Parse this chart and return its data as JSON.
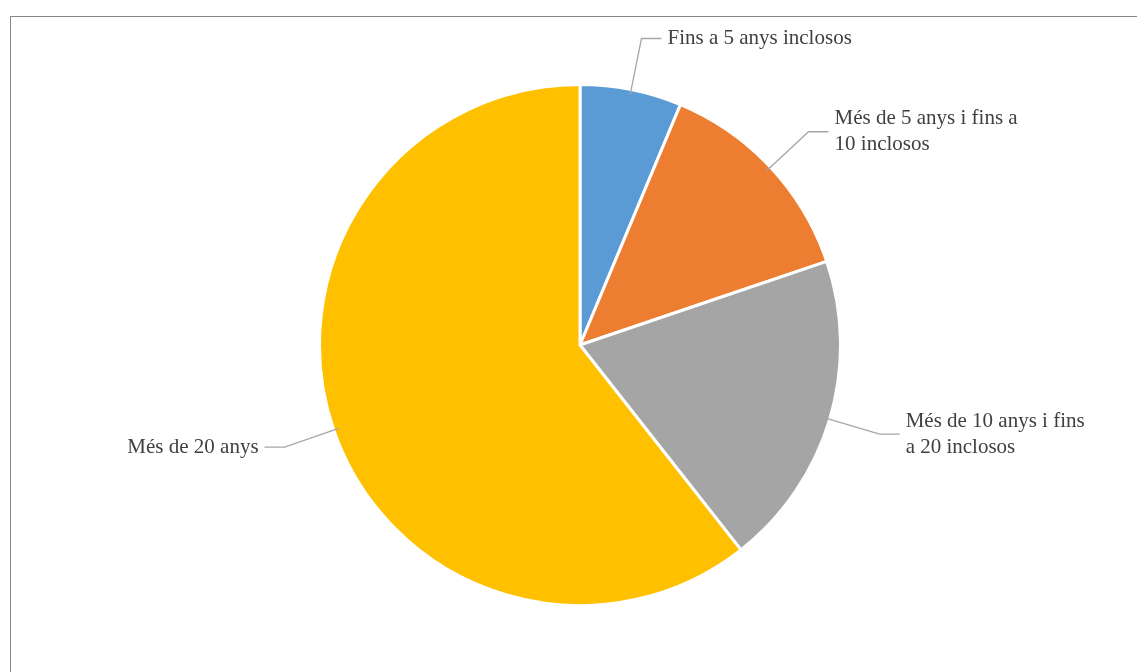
{
  "chart_data": {
    "type": "pie",
    "categories": [
      "Fins a 5 anys inclosos",
      "Més de 5 anys i fins a 10 inclosos",
      "Més de 10 anys i fins a 20 inclosos",
      "Més de 20 anys"
    ],
    "values": [
      6.3,
      13.5,
      19.6,
      60.6
    ],
    "colors": [
      "#5b9bd5",
      "#ed7d31",
      "#a5a5a5",
      "#ffc000"
    ],
    "legend": false
  }
}
